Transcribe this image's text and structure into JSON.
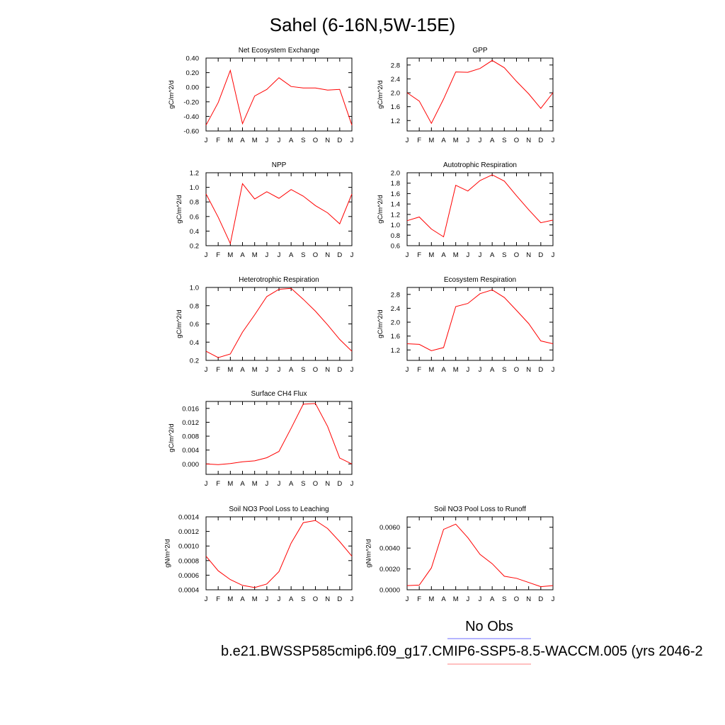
{
  "title": "Sahel (6-16N,5W-15E)",
  "months": [
    "J",
    "F",
    "M",
    "A",
    "M",
    "J",
    "J",
    "A",
    "S",
    "O",
    "N",
    "D",
    "J"
  ],
  "line_color": "#ff0000",
  "legend": {
    "obs_label": "No Obs",
    "obs_color": "#6b6bff",
    "model_label": "b.e21.BWSSP585cmip6.f09_g17.CMIP6-SSP5-8.5-WACCM.005 (yrs 2046-2",
    "model_color": "#ff8080"
  },
  "chart_data": [
    {
      "type": "line",
      "title": "Net Ecosystem Exchange",
      "ylabel": "gC/m^2/d",
      "ylim": [
        -0.6,
        0.4
      ],
      "yticks": [
        "0.40",
        "0.20",
        "0.00",
        "-0.20",
        "-0.40",
        "-0.60"
      ],
      "x": [
        "J",
        "F",
        "M",
        "A",
        "M",
        "J",
        "J",
        "A",
        "S",
        "O",
        "N",
        "D",
        "J"
      ],
      "values": [
        -0.52,
        -0.21,
        0.23,
        -0.5,
        -0.12,
        -0.03,
        0.13,
        0.01,
        -0.01,
        -0.01,
        -0.04,
        -0.03,
        -0.52
      ]
    },
    {
      "type": "line",
      "title": "GPP",
      "ylabel": "gC/m^2/d",
      "ylim": [
        0.9,
        3.0
      ],
      "yticks": [
        "2.8",
        "2.4",
        "2.0",
        "1.6",
        "1.2"
      ],
      "x": [
        "J",
        "F",
        "M",
        "A",
        "M",
        "J",
        "J",
        "A",
        "S",
        "O",
        "N",
        "D",
        "J"
      ],
      "values": [
        2.0,
        1.76,
        1.12,
        1.82,
        2.6,
        2.59,
        2.7,
        2.93,
        2.72,
        2.33,
        1.97,
        1.55,
        2.0
      ]
    },
    {
      "type": "line",
      "title": "NPP",
      "ylabel": "gC/m^2/d",
      "ylim": [
        0.2,
        1.2
      ],
      "yticks": [
        "1.2",
        "1.0",
        "0.8",
        "0.6",
        "0.4",
        "0.2"
      ],
      "x": [
        "J",
        "F",
        "M",
        "A",
        "M",
        "J",
        "J",
        "A",
        "S",
        "O",
        "N",
        "D",
        "J"
      ],
      "values": [
        0.91,
        0.59,
        0.23,
        1.05,
        0.84,
        0.94,
        0.85,
        0.97,
        0.88,
        0.75,
        0.65,
        0.5,
        0.91
      ]
    },
    {
      "type": "line",
      "title": "Autotrophic Respiration",
      "ylabel": "gC/m^2/d",
      "ylim": [
        0.6,
        2.0
      ],
      "yticks": [
        "2.0",
        "1.8",
        "1.6",
        "1.4",
        "1.2",
        "1.0",
        "0.8",
        "0.6"
      ],
      "x": [
        "J",
        "F",
        "M",
        "A",
        "M",
        "J",
        "J",
        "A",
        "S",
        "O",
        "N",
        "D",
        "J"
      ],
      "values": [
        1.08,
        1.15,
        0.92,
        0.77,
        1.76,
        1.65,
        1.85,
        1.96,
        1.84,
        1.56,
        1.29,
        1.04,
        1.09
      ]
    },
    {
      "type": "line",
      "title": "Heterotrophic Respiration",
      "ylabel": "gC/m^2/d",
      "ylim": [
        0.2,
        1.0
      ],
      "yticks": [
        "1.0",
        "0.8",
        "0.6",
        "0.4",
        "0.2"
      ],
      "x": [
        "J",
        "F",
        "M",
        "A",
        "M",
        "J",
        "J",
        "A",
        "S",
        "O",
        "N",
        "D",
        "J"
      ],
      "values": [
        0.3,
        0.23,
        0.27,
        0.51,
        0.7,
        0.9,
        0.98,
        0.99,
        0.87,
        0.74,
        0.59,
        0.43,
        0.3
      ]
    },
    {
      "type": "line",
      "title": "Ecosystem Respiration",
      "ylabel": "gC/m^2/d",
      "ylim": [
        0.9,
        3.0
      ],
      "yticks": [
        "2.8",
        "2.4",
        "2.0",
        "1.6",
        "1.2"
      ],
      "x": [
        "J",
        "F",
        "M",
        "A",
        "M",
        "J",
        "J",
        "A",
        "S",
        "O",
        "N",
        "D",
        "J"
      ],
      "values": [
        1.38,
        1.36,
        1.18,
        1.27,
        2.45,
        2.54,
        2.82,
        2.93,
        2.71,
        2.34,
        1.96,
        1.46,
        1.38
      ]
    },
    {
      "type": "line",
      "title": "Surface CH4 Flux",
      "ylabel": "gC/m^2/d",
      "ylim": [
        -0.003,
        0.018
      ],
      "yticks": [
        "0.016",
        "0.012",
        "0.008",
        "0.004",
        "0.000"
      ],
      "x": [
        "J",
        "F",
        "M",
        "A",
        "M",
        "J",
        "J",
        "A",
        "S",
        "O",
        "N",
        "D",
        "J"
      ],
      "values": [
        0.0,
        -0.0002,
        0.0001,
        0.0006,
        0.0009,
        0.0018,
        0.0036,
        0.0103,
        0.0172,
        0.0174,
        0.0108,
        0.0017,
        0.0
      ]
    },
    {
      "type": "line",
      "title": "Soil NO3 Pool Loss to Leaching",
      "ylabel": "gN/m^2/d",
      "ylim": [
        0.0004,
        0.0014
      ],
      "yticks": [
        "0.0014",
        "0.0012",
        "0.0010",
        "0.0008",
        "0.0006",
        "0.0004"
      ],
      "x": [
        "J",
        "F",
        "M",
        "A",
        "M",
        "J",
        "J",
        "A",
        "S",
        "O",
        "N",
        "D",
        "J"
      ],
      "values": [
        0.00086,
        0.00066,
        0.00054,
        0.00046,
        0.00043,
        0.00048,
        0.00065,
        0.00104,
        0.00132,
        0.00135,
        0.00124,
        0.00106,
        0.00086
      ]
    },
    {
      "type": "line",
      "title": "Soil NO3 Pool Loss to Runoff",
      "ylabel": "gN/m^2/d",
      "ylim": [
        0.0,
        0.007
      ],
      "yticks": [
        "0.0060",
        "0.0040",
        "0.0020",
        "0.0000"
      ],
      "x": [
        "J",
        "F",
        "M",
        "A",
        "M",
        "J",
        "J",
        "A",
        "S",
        "O",
        "N",
        "D",
        "J"
      ],
      "values": [
        0.0004,
        0.00045,
        0.0021,
        0.0058,
        0.0063,
        0.005,
        0.0034,
        0.0025,
        0.0013,
        0.0011,
        0.0007,
        0.0003,
        0.0004
      ]
    }
  ]
}
